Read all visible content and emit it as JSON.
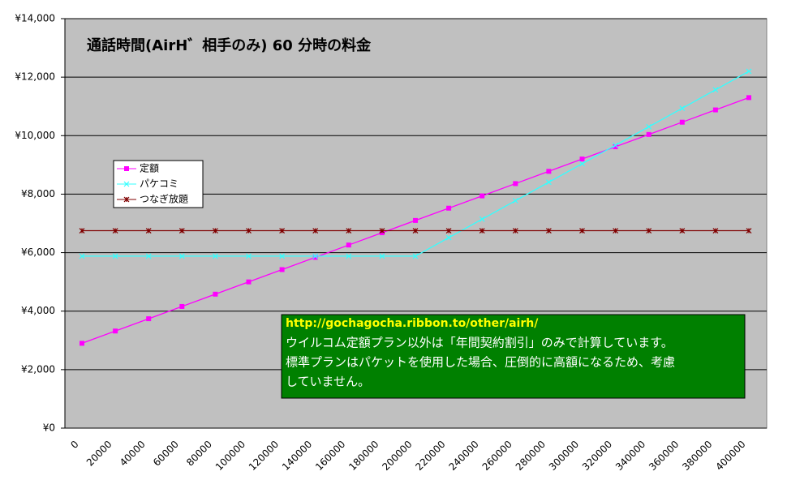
{
  "chart_data": {
    "type": "line",
    "title": "通話時間(AirH゛相手のみ) 60 分時の料金",
    "categories": [
      0,
      20000,
      40000,
      60000,
      80000,
      100000,
      120000,
      140000,
      160000,
      180000,
      200000,
      220000,
      240000,
      260000,
      280000,
      300000,
      320000,
      340000,
      360000,
      380000,
      400000
    ],
    "series": [
      {
        "name": "定額",
        "color": "#ff00ff",
        "marker": "square",
        "values": [
          2900,
          3320,
          3740,
          4160,
          4580,
          5000,
          5420,
          5840,
          6260,
          6680,
          7100,
          7520,
          7940,
          8360,
          8780,
          9200,
          9620,
          10040,
          10460,
          10880,
          11300
        ]
      },
      {
        "name": "パケコミ",
        "color": "#33ffff",
        "marker": "x",
        "values": [
          5880,
          5880,
          5880,
          5880,
          5880,
          5880,
          5880,
          5880,
          5880,
          5880,
          5880,
          6512,
          7144,
          7776,
          8408,
          9040,
          9672,
          10304,
          10936,
          11568,
          12200
        ]
      },
      {
        "name": "つなぎ放題",
        "color": "#800000",
        "marker": "star",
        "values": [
          6750,
          6750,
          6750,
          6750,
          6750,
          6750,
          6750,
          6750,
          6750,
          6750,
          6750,
          6750,
          6750,
          6750,
          6750,
          6750,
          6750,
          6750,
          6750,
          6750,
          6750
        ]
      }
    ],
    "ylim": [
      0,
      14000
    ],
    "yticks": [
      {
        "value": 0,
        "label": "¥0"
      },
      {
        "value": 2000,
        "label": "¥2,000"
      },
      {
        "value": 4000,
        "label": "¥4,000"
      },
      {
        "value": 6000,
        "label": "¥6,000"
      },
      {
        "value": 8000,
        "label": "¥8,000"
      },
      {
        "value": 10000,
        "label": "¥10,000"
      },
      {
        "value": 12000,
        "label": "¥12,000"
      },
      {
        "value": 14000,
        "label": "¥14,000"
      }
    ],
    "grid": true,
    "legend": "left",
    "annotation": {
      "link": "http://gochagocha.ribbon.to/other/airh/",
      "lines": [
        "ウイルコム定額プラン以外は「年間契約割引」のみで計算しています。",
        "標準プランはパケットを使用した場合、圧倒的に高額になるため、考慮",
        "していません。"
      ]
    }
  }
}
